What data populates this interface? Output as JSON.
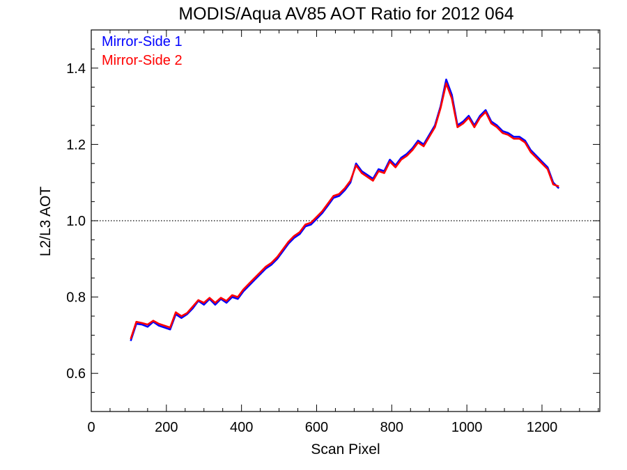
{
  "chart_data": {
    "type": "line",
    "title": "MODIS/Aqua AV85 AOT Ratio for 2012 064",
    "xlabel": "Scan Pixel",
    "ylabel": "L2/L3 AOT",
    "xlim": [
      0,
      1354
    ],
    "ylim": [
      0.5,
      1.5
    ],
    "x_ticks": [
      0,
      200,
      400,
      600,
      800,
      1000,
      1200
    ],
    "x_tick_labels": [
      "0",
      "200",
      "400",
      "600",
      "800",
      "1000",
      "1200"
    ],
    "y_ticks": [
      0.6,
      0.8,
      1.0,
      1.2,
      1.4
    ],
    "y_tick_labels": [
      "0.6",
      "0.8",
      "1.0",
      "1.2",
      "1.4"
    ],
    "reference_line": {
      "y": 1.0,
      "style": "dotted"
    },
    "legend_position": "top-left",
    "x": [
      105,
      120,
      135,
      150,
      165,
      180,
      195,
      210,
      225,
      240,
      255,
      270,
      285,
      300,
      315,
      330,
      345,
      360,
      375,
      390,
      405,
      420,
      435,
      450,
      465,
      480,
      495,
      510,
      525,
      540,
      555,
      570,
      585,
      600,
      615,
      630,
      645,
      660,
      675,
      690,
      705,
      720,
      735,
      750,
      765,
      780,
      795,
      810,
      825,
      840,
      855,
      870,
      885,
      900,
      915,
      930,
      945,
      960,
      975,
      990,
      1005,
      1020,
      1035,
      1050,
      1065,
      1080,
      1095,
      1110,
      1125,
      1140,
      1155,
      1170,
      1185,
      1200,
      1215,
      1230,
      1245
    ],
    "series": [
      {
        "name": "Mirror-Side 1",
        "color": "#0000ff",
        "values": [
          0.685,
          0.73,
          0.728,
          0.722,
          0.735,
          0.725,
          0.72,
          0.715,
          0.755,
          0.745,
          0.755,
          0.77,
          0.79,
          0.78,
          0.795,
          0.78,
          0.795,
          0.785,
          0.8,
          0.795,
          0.815,
          0.83,
          0.845,
          0.86,
          0.875,
          0.885,
          0.9,
          0.92,
          0.94,
          0.955,
          0.965,
          0.985,
          0.99,
          1.005,
          1.02,
          1.04,
          1.06,
          1.065,
          1.08,
          1.1,
          1.15,
          1.13,
          1.12,
          1.11,
          1.135,
          1.13,
          1.16,
          1.145,
          1.165,
          1.175,
          1.19,
          1.21,
          1.2,
          1.225,
          1.25,
          1.3,
          1.37,
          1.33,
          1.25,
          1.26,
          1.275,
          1.25,
          1.275,
          1.29,
          1.26,
          1.25,
          1.235,
          1.23,
          1.22,
          1.22,
          1.21,
          1.185,
          1.17,
          1.155,
          1.14,
          1.1,
          1.085
        ]
      },
      {
        "name": "Mirror-Side 2",
        "color": "#ff0000",
        "values": [
          0.69,
          0.735,
          0.732,
          0.728,
          0.738,
          0.73,
          0.725,
          0.72,
          0.76,
          0.75,
          0.758,
          0.775,
          0.792,
          0.785,
          0.798,
          0.785,
          0.798,
          0.79,
          0.805,
          0.8,
          0.82,
          0.835,
          0.85,
          0.865,
          0.88,
          0.89,
          0.905,
          0.925,
          0.945,
          0.96,
          0.97,
          0.99,
          0.995,
          1.01,
          1.025,
          1.045,
          1.065,
          1.07,
          1.085,
          1.105,
          1.145,
          1.125,
          1.115,
          1.105,
          1.13,
          1.125,
          1.155,
          1.14,
          1.16,
          1.17,
          1.185,
          1.205,
          1.195,
          1.22,
          1.245,
          1.295,
          1.36,
          1.32,
          1.245,
          1.255,
          1.27,
          1.245,
          1.27,
          1.285,
          1.255,
          1.245,
          1.23,
          1.225,
          1.215,
          1.215,
          1.205,
          1.18,
          1.165,
          1.15,
          1.135,
          1.095,
          1.09
        ]
      }
    ]
  }
}
